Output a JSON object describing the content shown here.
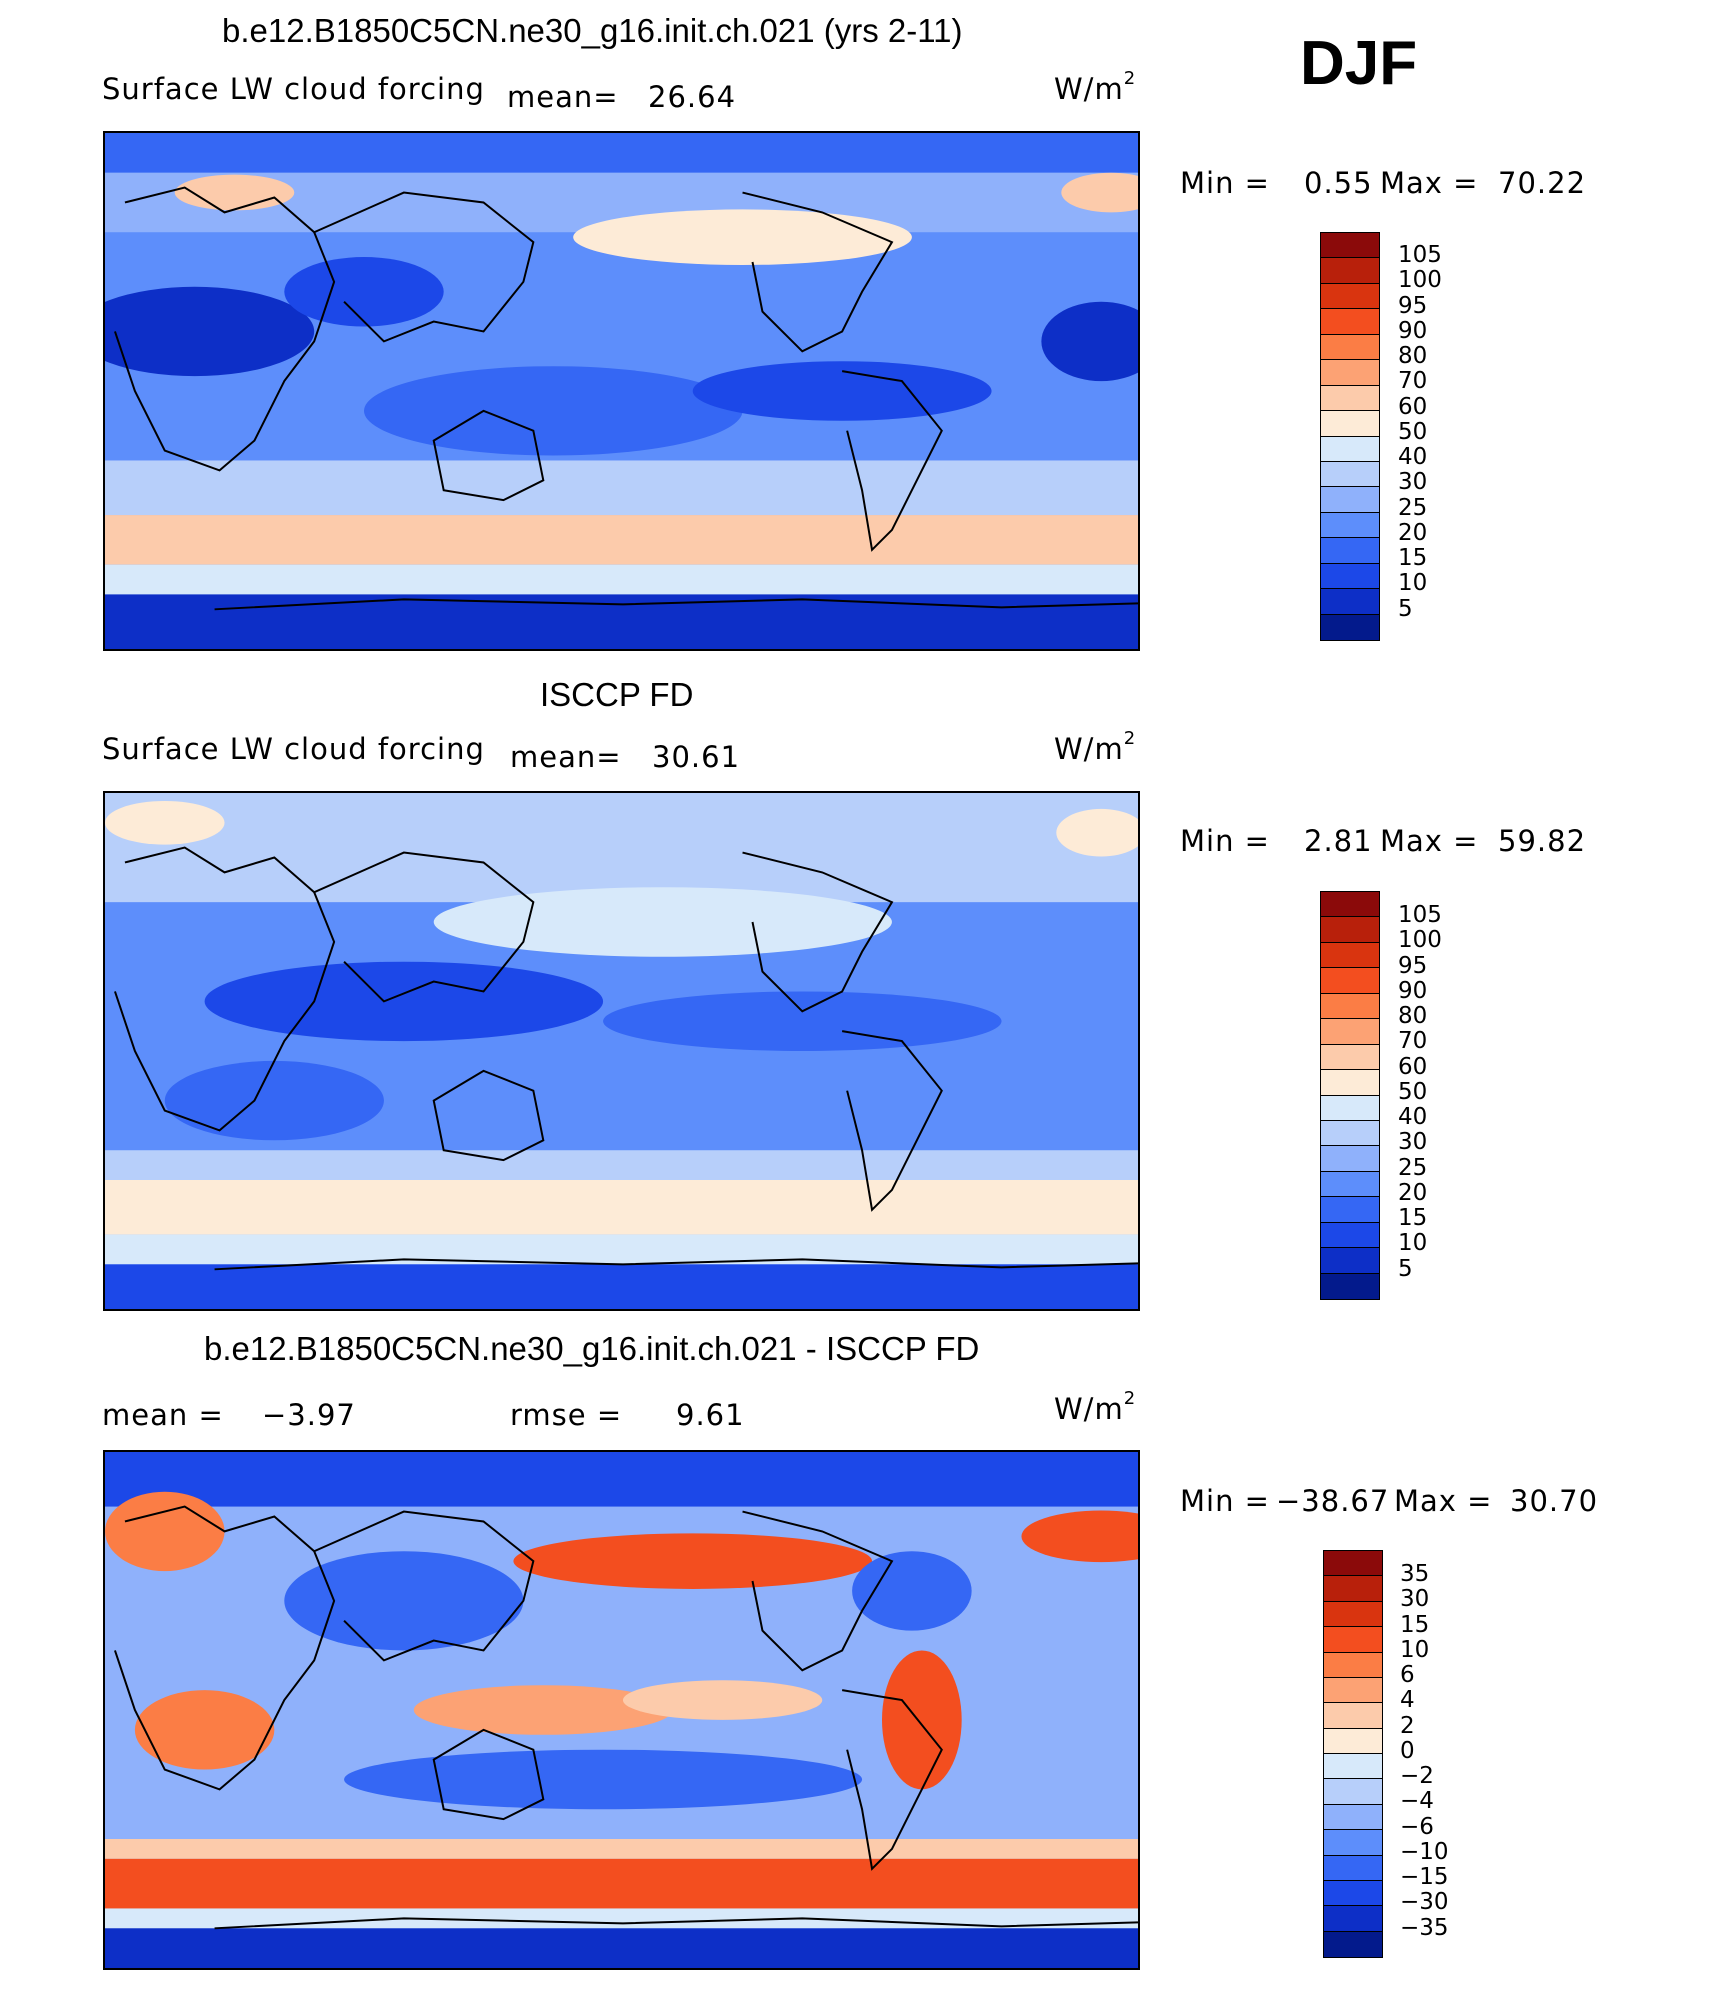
{
  "header": {
    "season": "DJF"
  },
  "panels": [
    {
      "title": "b.e12.B1850C5CN.ne30_g16.init.ch.021 (yrs 2-11)",
      "variable": "Surface LW cloud forcing",
      "stat1_label": "mean=",
      "stat1_value": "26.64",
      "units_base": "W/m",
      "units_exp": "2",
      "min_label": "Min =",
      "min_value": "0.55",
      "max_label": "Max =",
      "max_value": "70.22",
      "scheme": "abs"
    },
    {
      "title": "ISCCP FD",
      "variable": "Surface LW cloud forcing",
      "stat1_label": "mean=",
      "stat1_value": "30.61",
      "units_base": "W/m",
      "units_exp": "2",
      "min_label": "Min =",
      "min_value": "2.81",
      "max_label": "Max =",
      "max_value": "59.82",
      "scheme": "abs"
    },
    {
      "title": "b.e12.B1850C5CN.ne30_g16.init.ch.021 - ISCCP FD",
      "stat1_label": "mean =",
      "stat1_value": "−3.97",
      "stat2_label": "rmse =",
      "stat2_value": "9.61",
      "units_base": "W/m",
      "units_exp": "2",
      "min_label": "Min =",
      "min_value": "−38.67",
      "max_label": "Max =",
      "max_value": "30.70",
      "scheme": "diff"
    }
  ],
  "colorbars": {
    "abs": {
      "colors": [
        "#8b0a0a",
        "#b8200b",
        "#d9340f",
        "#f34e1f",
        "#fb7d45",
        "#fca274",
        "#fccbab",
        "#fdebd7",
        "#d7e9fa",
        "#b7cffa",
        "#8fb1fb",
        "#5d8efb",
        "#3567f4",
        "#1c48e8",
        "#0d2fc7",
        "#031a8c"
      ],
      "labels": [
        "105",
        "100",
        "95",
        "90",
        "80",
        "70",
        "60",
        "50",
        "40",
        "30",
        "25",
        "20",
        "15",
        "10",
        "5"
      ]
    },
    "diff": {
      "colors": [
        "#8b0a0a",
        "#b8200b",
        "#d9340f",
        "#f34e1f",
        "#fb7d45",
        "#fca274",
        "#fccbab",
        "#fdebd7",
        "#d7e9fa",
        "#b7cffa",
        "#8fb1fb",
        "#5d8efb",
        "#3567f4",
        "#1c48e8",
        "#0d2fc7",
        "#031a8c"
      ],
      "labels": [
        "35",
        "30",
        "15",
        "10",
        "6",
        "4",
        "2",
        "0",
        "−2",
        "−4",
        "−6",
        "−10",
        "−15",
        "−30",
        "−35"
      ]
    }
  },
  "chart_data": [
    {
      "type": "heatmap",
      "title": "b.e12.B1850C5CN.ne30_g16.init.ch.021 (yrs 2-11)",
      "subtitle": "Surface LW cloud forcing",
      "units": "W/m2",
      "projection": "cylindrical equidistant, global, centered on dateline",
      "mean": 26.64,
      "min": 0.55,
      "max": 70.22,
      "contour_levels": [
        5,
        10,
        15,
        20,
        25,
        30,
        40,
        50,
        60,
        70,
        80,
        90,
        95,
        100,
        105
      ]
    },
    {
      "type": "heatmap",
      "title": "ISCCP FD",
      "subtitle": "Surface LW cloud forcing",
      "units": "W/m2",
      "mean": 30.61,
      "min": 2.81,
      "max": 59.82,
      "contour_levels": [
        5,
        10,
        15,
        20,
        25,
        30,
        40,
        50,
        60,
        70,
        80,
        90,
        95,
        100,
        105
      ]
    },
    {
      "type": "heatmap",
      "title": "b.e12.B1850C5CN.ne30_g16.init.ch.021 - ISCCP FD",
      "units": "W/m2",
      "mean": -3.97,
      "rmse": 9.61,
      "min": -38.67,
      "max": 30.7,
      "contour_levels": [
        -35,
        -30,
        -15,
        -10,
        -6,
        -4,
        -2,
        0,
        2,
        4,
        6,
        10,
        15,
        30,
        35
      ]
    }
  ]
}
